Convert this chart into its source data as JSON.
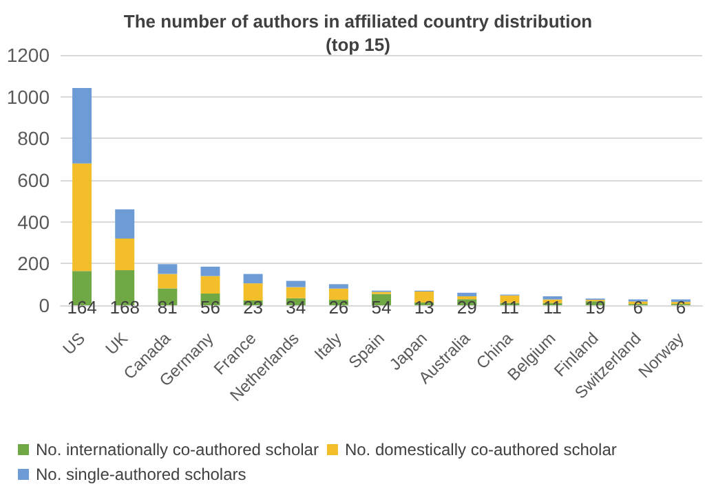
{
  "chart_data": {
    "type": "bar",
    "title": "The number of authors in affiliated country distribution\n(top 15)",
    "categories": [
      "US",
      "UK",
      "Canada",
      "Germany",
      "France",
      "Netherlands",
      "Italy",
      "Spain",
      "Japan",
      "Australia",
      "China",
      "Belgium",
      "Finland",
      "Switzerland",
      "Norway"
    ],
    "stacked": true,
    "series": [
      {
        "name": "No. internationally co-authored scholar",
        "color": "#70a846",
        "values": [
          164,
          168,
          81,
          56,
          23,
          34,
          26,
          54,
          13,
          29,
          11,
          11,
          19,
          6,
          6
        ],
        "value_labels": [
          "164",
          "168",
          "81",
          "56",
          "23",
          "34",
          "26",
          "54",
          "13",
          "29",
          "11",
          "11",
          "19",
          "6",
          "6"
        ]
      },
      {
        "name": "No. domestically co-authored scholar",
        "color": "#f2bf2a",
        "values": [
          516,
          152,
          69,
          84,
          82,
          53,
          54,
          10,
          53,
          14,
          36,
          17,
          7,
          12,
          10
        ]
      },
      {
        "name": "No. single-authored scholars",
        "color": "#6d9bd6",
        "values": [
          362,
          140,
          47,
          45,
          45,
          30,
          21,
          6,
          4,
          17,
          4,
          15,
          6,
          10,
          12
        ]
      }
    ],
    "ylim": [
      0,
      1200
    ],
    "yticks": [
      0,
      200,
      400,
      600,
      800,
      1000,
      1200
    ],
    "grid": "y",
    "legend": "bottom"
  }
}
